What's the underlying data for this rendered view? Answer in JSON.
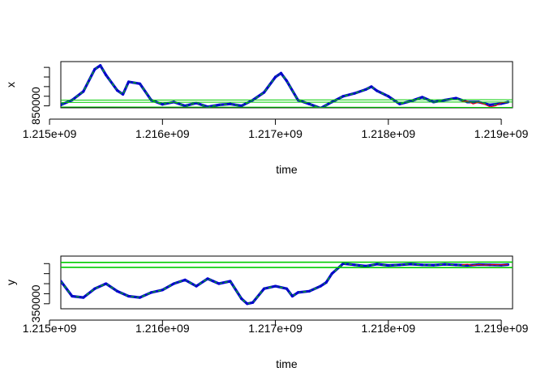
{
  "colors": {
    "blue": "#0000cd",
    "green": "#00cc00",
    "red": "#ff0000",
    "axis": "#000000"
  },
  "chart_data": [
    {
      "type": "line",
      "xlabel": "time",
      "ylabel": "x",
      "xlim": [
        1215100000,
        1219100000
      ],
      "ylim": [
        840000,
        1080000
      ],
      "x_ticks": [
        1215000000,
        1216000000,
        1217000000,
        1218000000,
        1219000000
      ],
      "x_tick_labels": [
        "1.215e+09",
        "1.216e+09",
        "1.217e+09",
        "1.218e+09",
        "1.219e+09"
      ],
      "y_ticks": [
        850000,
        900000,
        950000,
        1000000,
        1050000
      ],
      "y_tick_labels": [
        "850000",
        "",
        "",
        "",
        ""
      ],
      "track": {
        "x": [
          1215100000,
          1215200000,
          1215300000,
          1215400000,
          1215450000,
          1215500000,
          1215600000,
          1215650000,
          1215700000,
          1215800000,
          1215900000,
          1216000000,
          1216100000,
          1216200000,
          1216300000,
          1216400000,
          1216500000,
          1216600000,
          1216700000,
          1216800000,
          1216900000,
          1217000000,
          1217050000,
          1217100000,
          1217200000,
          1217300000,
          1217400000,
          1217500000,
          1217600000,
          1217700000,
          1217800000,
          1217850000,
          1217900000,
          1218000000,
          1218100000,
          1218200000,
          1218300000,
          1218400000,
          1218500000,
          1218600000,
          1218700000,
          1218800000,
          1218900000,
          1219000000,
          1219060000
        ],
        "y": [
          855000,
          880000,
          925000,
          1040000,
          1060000,
          1010000,
          930000,
          910000,
          975000,
          965000,
          880000,
          858000,
          870000,
          850000,
          865000,
          845000,
          855000,
          860000,
          850000,
          880000,
          920000,
          1000000,
          1020000,
          980000,
          880000,
          860000,
          838000,
          870000,
          900000,
          915000,
          935000,
          950000,
          928000,
          900000,
          860000,
          875000,
          895000,
          870000,
          880000,
          890000,
          870000,
          870000,
          855000,
          862000,
          870000
        ]
      },
      "estimate": {
        "x": [
          1218650000,
          1218700000,
          1218750000,
          1218800000,
          1218850000,
          1218900000,
          1218950000,
          1219000000,
          1219060000
        ],
        "y": [
          872000,
          875000,
          860000,
          868000,
          858000,
          845000,
          850000,
          866000,
          870000
        ]
      },
      "ellipses": [
        {
          "x": 1218780000,
          "y": 862000,
          "rx": 30000000,
          "ry": 20000
        },
        {
          "x": 1218980000,
          "y": 850000,
          "rx": 40000000,
          "ry": 20000
        }
      ]
    },
    {
      "type": "line",
      "xlabel": "time",
      "ylabel": "y",
      "xlim": [
        1215100000,
        1219100000
      ],
      "ylim": [
        330000,
        540000
      ],
      "x_ticks": [
        1215000000,
        1216000000,
        1217000000,
        1218000000,
        1219000000
      ],
      "x_tick_labels": [
        "1.215e+09",
        "1.216e+09",
        "1.217e+09",
        "1.218e+09",
        "1.219e+09"
      ],
      "y_ticks": [
        350000,
        390000,
        430000,
        470000,
        510000
      ],
      "y_tick_labels": [
        "350000",
        "",
        "",
        "",
        ""
      ],
      "track": {
        "x": [
          1215100000,
          1215200000,
          1215300000,
          1215400000,
          1215500000,
          1215600000,
          1215700000,
          1215800000,
          1215900000,
          1216000000,
          1216100000,
          1216200000,
          1216300000,
          1216400000,
          1216450000,
          1216500000,
          1216600000,
          1216700000,
          1216750000,
          1216800000,
          1216900000,
          1217000000,
          1217100000,
          1217150000,
          1217200000,
          1217300000,
          1217400000,
          1217450000,
          1217500000,
          1217600000,
          1217700000,
          1217800000,
          1217900000,
          1218000000,
          1218100000,
          1218200000,
          1218300000,
          1218400000,
          1218500000,
          1218600000,
          1218700000,
          1218800000,
          1218900000,
          1219000000,
          1219060000
        ],
        "y": [
          440000,
          380000,
          375000,
          410000,
          430000,
          400000,
          380000,
          375000,
          395000,
          405000,
          430000,
          445000,
          420000,
          450000,
          440000,
          430000,
          440000,
          370000,
          350000,
          355000,
          410000,
          420000,
          410000,
          380000,
          395000,
          400000,
          420000,
          435000,
          470000,
          510000,
          505000,
          500000,
          508000,
          503000,
          505000,
          508000,
          505000,
          504000,
          507000,
          505000,
          503000,
          506000,
          505000,
          504000,
          506000
        ]
      },
      "estimate": {
        "x": [
          1218650000,
          1218700000,
          1218750000,
          1218800000,
          1218850000,
          1218900000,
          1218950000,
          1219000000,
          1219060000
        ],
        "y": [
          505000,
          508000,
          503000,
          506000,
          504000,
          505000,
          506000,
          505000,
          506000
        ]
      },
      "ellipses": [
        {
          "x": 1218780000,
          "y": 505000,
          "rx": 30000000,
          "ry": 10000
        },
        {
          "x": 1218980000,
          "y": 505000,
          "rx": 40000000,
          "ry": 12000
        }
      ]
    }
  ]
}
